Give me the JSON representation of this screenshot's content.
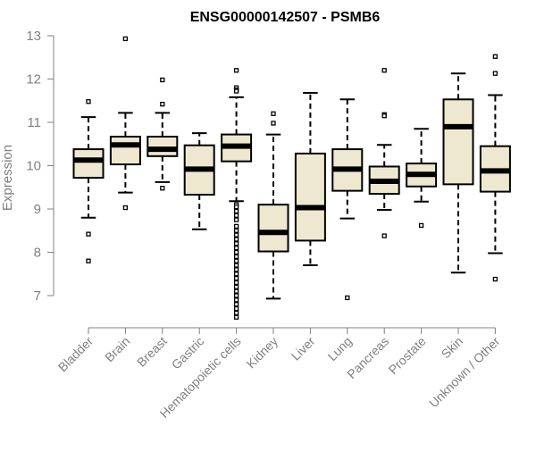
{
  "chart_data": {
    "type": "box",
    "title": "ENSG00000142507 - PSMB6",
    "xlabel": "",
    "ylabel": "Expression",
    "ylim": [
      6.5,
      13.0
    ],
    "yticks": [
      7,
      8,
      9,
      10,
      11,
      12,
      13
    ],
    "grid": false,
    "legend": "none",
    "colors": {
      "box_fill": "#EEE8D0",
      "stroke": "#000000",
      "text": "#808080",
      "axis": "#808080"
    },
    "categories": [
      "Bladder",
      "Brain",
      "Breast",
      "Gastric",
      "Hematopoietic cells",
      "Kidney",
      "Liver",
      "Lung",
      "Pancreas",
      "Prostate",
      "Skin",
      "Unknown / Other"
    ],
    "series": [
      {
        "category": "Bladder",
        "whisker_low": 8.8,
        "q1": 9.72,
        "median": 10.13,
        "q3": 10.38,
        "whisker_high": 11.12,
        "outliers": [
          11.48,
          8.42,
          7.8
        ]
      },
      {
        "category": "Brain",
        "whisker_low": 9.38,
        "q1": 10.03,
        "median": 10.48,
        "q3": 10.67,
        "whisker_high": 11.22,
        "outliers": [
          12.93,
          9.03
        ]
      },
      {
        "category": "Breast",
        "whisker_low": 9.62,
        "q1": 10.22,
        "median": 10.38,
        "q3": 10.67,
        "whisker_high": 11.22,
        "outliers": [
          11.98,
          11.42,
          9.48
        ]
      },
      {
        "category": "Gastric",
        "whisker_low": 8.53,
        "q1": 9.33,
        "median": 9.92,
        "q3": 10.47,
        "whisker_high": 10.75,
        "outliers": []
      },
      {
        "category": "Hematopoietic cells",
        "whisker_low": 9.18,
        "q1": 10.1,
        "median": 10.45,
        "q3": 10.72,
        "whisker_high": 11.58,
        "outliers": [
          12.2,
          11.8,
          11.75,
          11.72,
          9.1,
          9.05,
          8.95,
          8.85,
          8.75,
          8.6,
          8.5,
          8.4,
          8.3,
          8.2,
          8.1,
          8.0,
          7.9,
          7.8,
          7.7,
          7.6,
          7.5,
          7.4,
          7.3,
          7.2,
          7.1,
          7.0,
          6.9,
          6.8,
          6.7,
          6.6,
          6.5
        ]
      },
      {
        "category": "Kidney",
        "whisker_low": 6.93,
        "q1": 8.02,
        "median": 8.46,
        "q3": 9.1,
        "whisker_high": 10.72,
        "outliers": [
          11.2,
          10.98
        ]
      },
      {
        "category": "Liver",
        "whisker_low": 7.7,
        "q1": 8.27,
        "median": 9.03,
        "q3": 10.28,
        "whisker_high": 11.68,
        "outliers": []
      },
      {
        "category": "Lung",
        "whisker_low": 8.78,
        "q1": 9.42,
        "median": 9.92,
        "q3": 10.38,
        "whisker_high": 11.53,
        "outliers": [
          6.95
        ]
      },
      {
        "category": "Pancreas",
        "whisker_low": 8.98,
        "q1": 9.35,
        "median": 9.64,
        "q3": 9.98,
        "whisker_high": 10.48,
        "outliers": [
          12.2,
          11.18,
          11.15,
          8.38
        ]
      },
      {
        "category": "Prostate",
        "whisker_low": 9.17,
        "q1": 9.52,
        "median": 9.8,
        "q3": 10.05,
        "whisker_high": 10.85,
        "outliers": [
          8.62
        ]
      },
      {
        "category": "Skin",
        "whisker_low": 7.53,
        "q1": 9.57,
        "median": 10.9,
        "q3": 11.53,
        "whisker_high": 12.13,
        "outliers": []
      },
      {
        "category": "Unknown / Other",
        "whisker_low": 7.98,
        "q1": 9.4,
        "median": 9.88,
        "q3": 10.45,
        "whisker_high": 11.63,
        "outliers": [
          12.52,
          12.13,
          7.38
        ]
      }
    ]
  }
}
